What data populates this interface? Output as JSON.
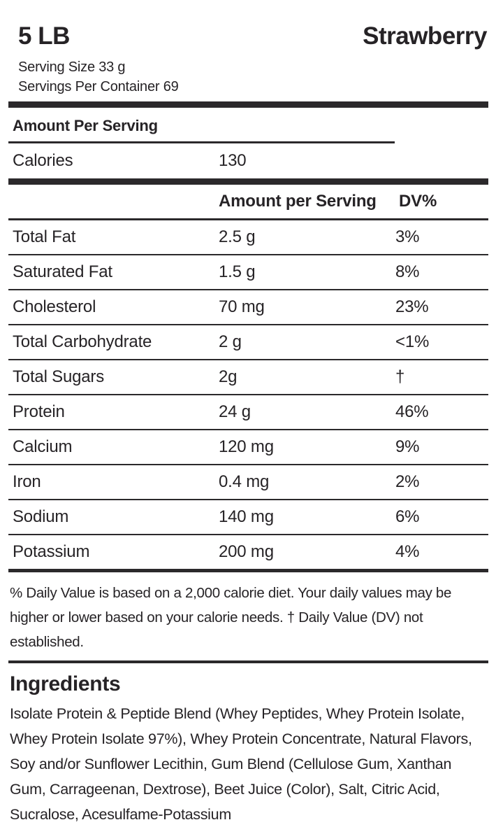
{
  "header": {
    "size": "5 LB",
    "flavor": "Strawberry",
    "serving_size": "Serving Size 33 g",
    "servings_per_container": "Servings Per Container 69"
  },
  "calories_panel": {
    "title": "Amount Per Serving",
    "label": "Calories",
    "value": "130"
  },
  "nutrient_table": {
    "columns": {
      "amount": "Amount per Serving",
      "dv": "DV%"
    },
    "rows": [
      {
        "name": "Total Fat",
        "amount": "2.5 g",
        "dv": "3%"
      },
      {
        "name": "Saturated Fat",
        "amount": "1.5 g",
        "dv": "8%"
      },
      {
        "name": "Cholesterol",
        "amount": "70 mg",
        "dv": "23%"
      },
      {
        "name": "Total Carbohydrate",
        "amount": "2 g",
        "dv": "<1%"
      },
      {
        "name": "Total Sugars",
        "amount": "2g",
        "dv": "†"
      },
      {
        "name": "Protein",
        "amount": "24 g",
        "dv": "46%"
      },
      {
        "name": "Calcium",
        "amount": "120 mg",
        "dv": "9%"
      },
      {
        "name": "Iron",
        "amount": "0.4 mg",
        "dv": "2%"
      },
      {
        "name": "Sodium",
        "amount": "140 mg",
        "dv": "6%"
      },
      {
        "name": "Potassium",
        "amount": "200 mg",
        "dv": "4%"
      }
    ]
  },
  "footnote": "% Daily Value is based on a 2,000 calorie diet. Your daily values may be higher or lower based on your calorie needs. † Daily Value (DV) not established.",
  "ingredients": {
    "title": "Ingredients",
    "text": "Isolate Protein & Peptide Blend (Whey Peptides, Whey Protein Isolate, Whey Protein Isolate 97%), Whey Protein Concentrate, Natural Flavors, Soy and/or Sunflower Lecithin, Gum Blend (Cellulose Gum, Xanthan Gum, Carrageenan, Dextrose), Beet Juice (Color), Salt, Citric Acid, Sucralose, Acesulfame-Potassium"
  },
  "colors": {
    "text": "#262326",
    "rule": "#2b292b",
    "background": "#ffffff"
  }
}
